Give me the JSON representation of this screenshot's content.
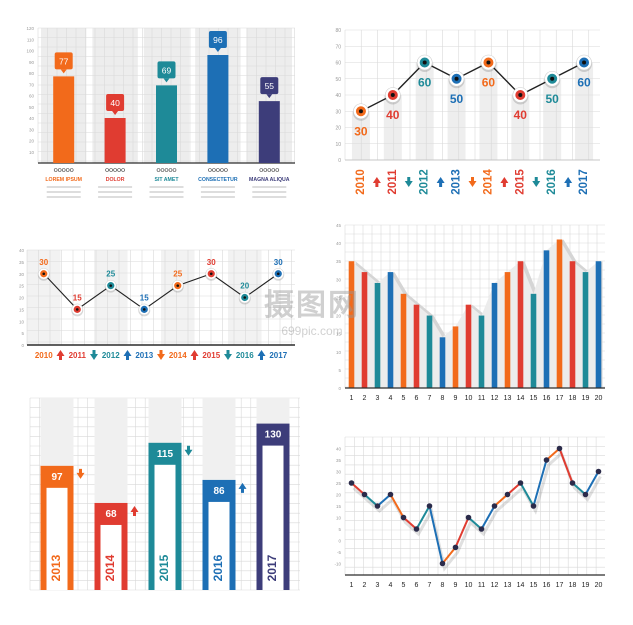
{
  "colors": {
    "orange": "#F26A1B",
    "red": "#E03C31",
    "teal": "#1E8A98",
    "blue": "#1D6FB5",
    "purple": "#3D3D7A",
    "dark": "#2C2C2C",
    "grid": "#D9D9D9",
    "band": "#EDEDED"
  },
  "watermark": {
    "text": "摄图网",
    "url": "699pic.com"
  },
  "chart_data": [
    {
      "type": "bar",
      "title": "",
      "categories": [
        "LOREM IPSUM",
        "DOLOR",
        "SIT AMET",
        "CONSECTETUR",
        "MAGNA ALIQUA"
      ],
      "values": [
        77,
        40,
        69,
        96,
        55
      ],
      "value_labels": [
        "77",
        "40",
        "69",
        "96",
        "55"
      ],
      "bar_colors": [
        "#F26A1B",
        "#E03C31",
        "#1E8A98",
        "#1D6FB5",
        "#3D3D7A"
      ],
      "yticks": [
        "10",
        "20",
        "30",
        "40",
        "50",
        "60",
        "70",
        "80",
        "90",
        "100",
        "110",
        "120"
      ],
      "ylim": [
        0,
        120
      ],
      "grid": true,
      "legend": "none"
    },
    {
      "type": "line",
      "title": "",
      "x": [
        "2010",
        "2011",
        "2012",
        "2013",
        "2014",
        "2015",
        "2016",
        "2017"
      ],
      "values": [
        30,
        40,
        60,
        50,
        60,
        40,
        50,
        60
      ],
      "value_labels": [
        "30",
        "40",
        "60",
        "50",
        "60",
        "40",
        "50",
        "60"
      ],
      "point_colors": [
        "#F26A1B",
        "#E03C31",
        "#1E8A98",
        "#1D6FB5",
        "#F26A1B",
        "#E03C31",
        "#1E8A98",
        "#1D6FB5"
      ],
      "yticks": [
        "0",
        "10",
        "20",
        "30",
        "40",
        "50",
        "60",
        "70",
        "80"
      ],
      "ylim": [
        0,
        80
      ],
      "grid": true
    },
    {
      "type": "line",
      "title": "",
      "x": [
        "2010",
        "2011",
        "2012",
        "2013",
        "2014",
        "2015",
        "2016",
        "2017"
      ],
      "values": [
        30,
        15,
        25,
        15,
        25,
        30,
        20,
        30
      ],
      "value_labels": [
        "30",
        "15",
        "25",
        "15",
        "25",
        "30",
        "20",
        "30"
      ],
      "point_colors": [
        "#F26A1B",
        "#E03C31",
        "#1E8A98",
        "#1D6FB5",
        "#F26A1B",
        "#E03C31",
        "#1E8A98",
        "#1D6FB5"
      ],
      "yticks": [
        "0",
        "5",
        "10",
        "15",
        "20",
        "25",
        "30",
        "35",
        "40"
      ],
      "ylim": [
        0,
        40
      ],
      "grid": true
    },
    {
      "type": "bar",
      "title": "",
      "categories": [
        "1",
        "2",
        "3",
        "4",
        "5",
        "6",
        "7",
        "8",
        "9",
        "10",
        "11",
        "12",
        "13",
        "14",
        "15",
        "16",
        "17",
        "18",
        "19",
        "20"
      ],
      "values": [
        35,
        32,
        29,
        32,
        26,
        23,
        20,
        14,
        17,
        23,
        20,
        29,
        32,
        35,
        26,
        38,
        41,
        35,
        32,
        35
      ],
      "bar_colors": [
        "#F26A1B",
        "#E03C31",
        "#1E8A98",
        "#1D6FB5",
        "#F26A1B",
        "#E03C31",
        "#1E8A98",
        "#1D6FB5",
        "#F26A1B",
        "#E03C31",
        "#1E8A98",
        "#1D6FB5",
        "#F26A1B",
        "#E03C31",
        "#1E8A98",
        "#1D6FB5",
        "#F26A1B",
        "#E03C31",
        "#1E8A98",
        "#1D6FB5"
      ],
      "yticks": [
        "0",
        "5",
        "10",
        "15",
        "20",
        "25",
        "30",
        "35",
        "40",
        "45"
      ],
      "ylim": [
        0,
        45
      ],
      "grid": true
    },
    {
      "type": "bar",
      "title": "",
      "categories": [
        "2013",
        "2014",
        "2015",
        "2016",
        "2017"
      ],
      "values": [
        97,
        68,
        115,
        86,
        130
      ],
      "value_labels": [
        "97",
        "68",
        "115",
        "86",
        "130"
      ],
      "bar_colors": [
        "#F26A1B",
        "#E03C31",
        "#1E8A98",
        "#1D6FB5",
        "#3D3D7A"
      ],
      "trend": [
        "down",
        "up",
        "down",
        "up",
        "none"
      ],
      "ylim": [
        0,
        150
      ],
      "grid": true
    },
    {
      "type": "line",
      "title": "",
      "x": [
        "1",
        "2",
        "3",
        "4",
        "5",
        "6",
        "7",
        "8",
        "9",
        "10",
        "11",
        "12",
        "13",
        "14",
        "15",
        "16",
        "17",
        "18",
        "19",
        "20"
      ],
      "values": [
        25,
        20,
        15,
        20,
        10,
        5,
        15,
        -10,
        -3,
        10,
        5,
        15,
        20,
        25,
        15,
        35,
        40,
        25,
        20,
        30
      ],
      "point_colors": [
        "#E03C31",
        "#E03C31",
        "#1E8A98",
        "#1D6FB5",
        "#F26A1B",
        "#E03C31",
        "#1E8A98",
        "#1D6FB5",
        "#F26A1B",
        "#E03C31",
        "#1E8A98",
        "#1D6FB5",
        "#F26A1B",
        "#E03C31",
        "#1E8A98",
        "#1D6FB5",
        "#F26A1B",
        "#E03C31",
        "#1E8A98",
        "#1D6FB5"
      ],
      "yticks": [
        "-10",
        "-5",
        "0",
        "5",
        "10",
        "15",
        "20",
        "25",
        "30",
        "35",
        "40"
      ],
      "ylim": [
        -15,
        45
      ],
      "grid": true
    }
  ]
}
